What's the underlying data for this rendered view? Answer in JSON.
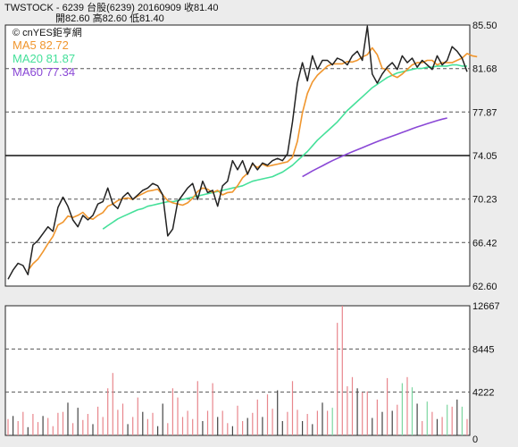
{
  "header": {
    "line1": "TWSTOCK - 6239 台股(6239) 20160909 收81.40",
    "line2": "開82.60 高82.60 低81.40"
  },
  "watermark": "© cnYES鉅亨網",
  "colors": {
    "price": "#222222",
    "ma5": "#f0962e",
    "ma20": "#45e09a",
    "ma60": "#8a48d6",
    "vol_up": "#e8868c",
    "vol_down": "#444444",
    "vol_neutral": "#7cd6a0",
    "grid": "#555555",
    "background": "#ffffff",
    "page": "#ececec"
  },
  "legend": [
    {
      "label": "MA5 82.72",
      "color": "#f0962e"
    },
    {
      "label": "MA20 81.87",
      "color": "#45e09a"
    },
    {
      "label": "MA60 77.34",
      "color": "#8a48d6"
    }
  ],
  "chart_data": [
    {
      "type": "line",
      "panel": "price",
      "ylim": [
        62.6,
        85.5
      ],
      "yticks": [
        85.5,
        81.68,
        77.87,
        74.05,
        70.23,
        66.42,
        62.6
      ],
      "ytick_labels": [
        "85.50",
        "81.68",
        "77.87",
        "74.05",
        "70.23",
        "66.42",
        "62.60"
      ],
      "series": [
        {
          "name": "Close",
          "key": "price",
          "x_start": 0,
          "values": [
            63.2,
            64.0,
            64.6,
            64.4,
            63.6,
            66.2,
            66.6,
            67.2,
            67.8,
            67.4,
            69.5,
            70.4,
            69.6,
            68.4,
            67.8,
            68.8,
            68.4,
            68.8,
            69.8,
            70.0,
            71.2,
            69.8,
            69.4,
            70.4,
            70.8,
            70.2,
            70.6,
            71.0,
            71.2,
            71.6,
            71.4,
            70.6,
            67.0,
            67.6,
            70.0,
            70.6,
            71.2,
            71.6,
            70.2,
            71.8,
            70.8,
            71.0,
            69.6,
            71.4,
            71.8,
            73.6,
            72.8,
            73.6,
            72.4,
            73.4,
            72.8,
            73.4,
            73.2,
            73.6,
            73.8,
            73.6,
            74.2,
            77.0,
            80.4,
            82.2,
            80.6,
            82.8,
            81.6,
            82.4,
            82.4,
            82.0,
            82.6,
            82.4,
            82.0,
            82.8,
            83.2,
            82.4,
            85.4,
            81.2,
            80.4,
            81.2,
            81.8,
            82.2,
            81.6,
            82.8,
            82.2,
            82.6,
            81.8,
            82.4,
            82.0,
            81.6,
            82.8,
            82.0,
            82.4,
            83.6,
            83.2,
            82.6,
            81.4
          ]
        },
        {
          "name": "MA5",
          "key": "ma5",
          "x_start": 4,
          "values": [
            63.96,
            64.56,
            64.96,
            65.6,
            66.32,
            66.96,
            67.96,
            68.2,
            68.74,
            68.62,
            68.8,
            69.07,
            68.6,
            68.47,
            68.8,
            69.05,
            69.6,
            69.8,
            70.1,
            70.27,
            70.33,
            70.2,
            70.5,
            70.7,
            70.93,
            71.0,
            71.1,
            70.6,
            70.1,
            69.9,
            69.8,
            69.7,
            69.9,
            70.3,
            70.9,
            71.2,
            71.1,
            70.8,
            71.0,
            70.6,
            70.8,
            70.85,
            71.4,
            72.1,
            72.5,
            73.3,
            73.0,
            73.3,
            73.1,
            73.2,
            73.3,
            73.4,
            73.5,
            73.9,
            75.3,
            77.8,
            79.5,
            80.5,
            81.1,
            81.5,
            81.9,
            82.1,
            82.1,
            82.1,
            82.3,
            82.25,
            82.4,
            82.7,
            82.9,
            83.5,
            82.9,
            81.7,
            81.6,
            81.1,
            80.9,
            81.2,
            81.6,
            82.0,
            82.2,
            82.2,
            82.4,
            82.4,
            82.0,
            82.2,
            82.2,
            82.2,
            82.4,
            82.6,
            83.0,
            82.8,
            82.72
          ]
        },
        {
          "name": "MA20",
          "key": "ma20",
          "x_start": 19,
          "values": [
            67.6,
            67.9,
            68.2,
            68.5,
            68.7,
            68.9,
            69.1,
            69.3,
            69.4,
            69.6,
            69.7,
            69.8,
            69.9,
            70.0,
            70.0,
            70.1,
            70.2,
            70.3,
            70.4,
            70.5,
            70.6,
            70.7,
            70.8,
            70.9,
            71.0,
            71.1,
            71.2,
            71.3,
            71.4,
            71.6,
            71.8,
            71.9,
            72.0,
            72.1,
            72.2,
            72.4,
            72.6,
            72.9,
            73.2,
            73.6,
            74.0,
            74.4,
            74.9,
            75.4,
            75.8,
            76.2,
            76.6,
            77.0,
            77.5,
            78.0,
            78.4,
            78.8,
            79.2,
            79.6,
            80.0,
            80.3,
            80.6,
            80.9,
            81.1,
            81.3,
            81.4,
            81.5,
            81.6,
            81.7,
            81.7,
            81.8,
            81.8,
            81.9,
            81.9,
            81.9,
            82.0,
            82.0,
            81.9,
            81.9
          ]
        },
        {
          "name": "MA60",
          "key": "ma60",
          "x_start": 59,
          "values": [
            72.2,
            72.45,
            72.7,
            72.93,
            73.15,
            73.38,
            73.6,
            73.8,
            74.0,
            74.2,
            74.38,
            74.56,
            74.74,
            74.92,
            75.1,
            75.27,
            75.44,
            75.6,
            75.76,
            75.92,
            76.08,
            76.24,
            76.4,
            76.56,
            76.7,
            76.84,
            76.98,
            77.12,
            77.24,
            77.34
          ]
        }
      ]
    },
    {
      "type": "bar",
      "panel": "volume",
      "ylim": [
        0,
        12667
      ],
      "yticks": [
        12667,
        8445,
        4222,
        0
      ],
      "ytick_labels": [
        "12667",
        "8445",
        "4222",
        "0"
      ],
      "values": [
        1600,
        1900,
        1400,
        2300,
        800,
        2100,
        1300,
        1900,
        1700,
        900,
        2200,
        2300,
        3200,
        1200,
        2700,
        1500,
        2100,
        1100,
        2800,
        1800,
        4600,
        6100,
        2500,
        3100,
        1100,
        1800,
        3700,
        2300,
        1600,
        2200,
        900,
        3100,
        1200,
        4600,
        3700,
        1800,
        2400,
        1600,
        5300,
        1400,
        2400,
        5100,
        1800,
        2400,
        1200,
        900,
        2900,
        1400,
        1700,
        2200,
        3500,
        1800,
        4000,
        2600,
        4400,
        1400,
        2300,
        5300,
        2500,
        1400,
        2100,
        1100,
        2400,
        3200,
        2400,
        2700,
        11000,
        12667,
        4800,
        5700,
        4600,
        4200,
        4300,
        1700,
        3500,
        2300,
        5600,
        2400,
        3000,
        5100,
        5700,
        4700,
        3100,
        1400,
        3300,
        2300,
        1600,
        1800,
        3000,
        2800,
        3500,
        2800,
        1600
      ],
      "direction": [
        "u",
        "d",
        "u",
        "u",
        "d",
        "u",
        "u",
        "d",
        "u",
        "u",
        "u",
        "u",
        "d",
        "u",
        "d",
        "u",
        "u",
        "d",
        "u",
        "u",
        "u",
        "u",
        "u",
        "u",
        "d",
        "u",
        "u",
        "d",
        "u",
        "u",
        "d",
        "d",
        "u",
        "u",
        "u",
        "u",
        "u",
        "u",
        "u",
        "d",
        "u",
        "u",
        "d",
        "u",
        "u",
        "d",
        "u",
        "u",
        "d",
        "u",
        "u",
        "d",
        "u",
        "u",
        "d",
        "d",
        "u",
        "u",
        "u",
        "d",
        "u",
        "d",
        "u",
        "d",
        "u",
        "n",
        "u",
        "u",
        "u",
        "u",
        "d",
        "u",
        "u",
        "d",
        "u",
        "d",
        "u",
        "d",
        "u",
        "n",
        "u",
        "n",
        "d",
        "u",
        "n",
        "u",
        "d",
        "u",
        "n",
        "u",
        "d",
        "n",
        "u"
      ]
    }
  ]
}
